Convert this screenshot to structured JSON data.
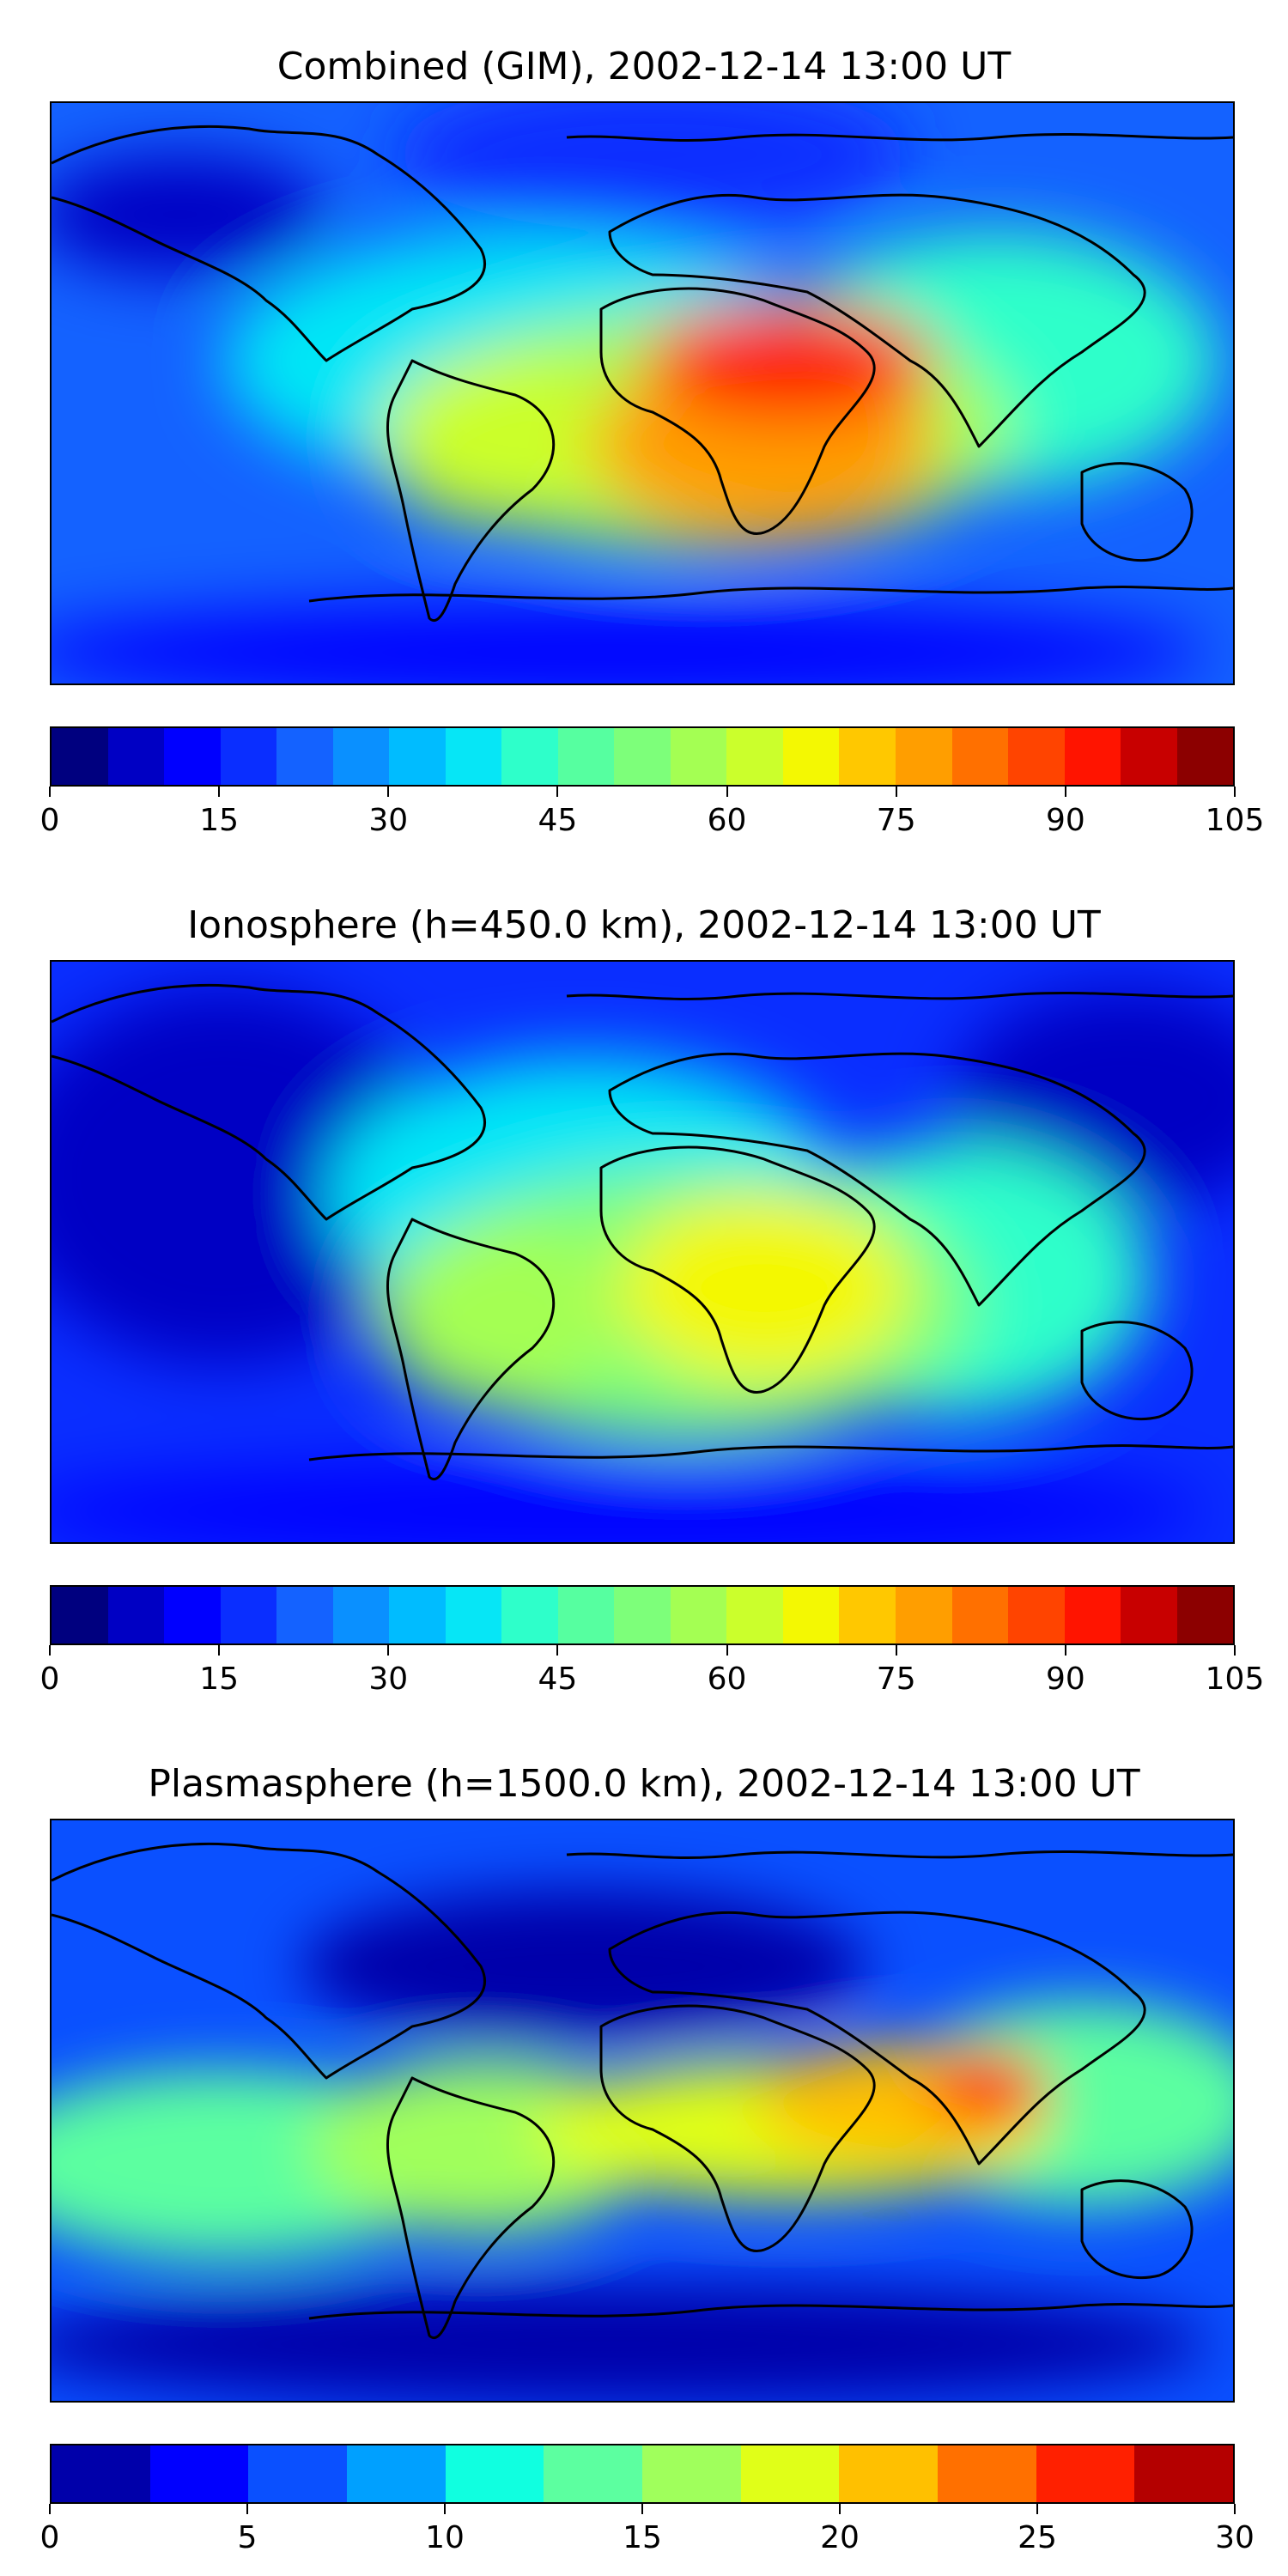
{
  "panels": [
    {
      "title": "Combined (GIM), 2002-12-14 13:00 UT",
      "colorbar": {
        "colors": [
          "#00007f",
          "#0000c4",
          "#0000ff",
          "#0a2eff",
          "#1462ff",
          "#0a90ff",
          "#00bcff",
          "#06e6f6",
          "#2effca",
          "#56ffa0",
          "#7dff7a",
          "#a4ff53",
          "#cbff2c",
          "#f4f802",
          "#ffc800",
          "#ff9e00",
          "#ff7000",
          "#ff4400",
          "#ff1400",
          "#c80000",
          "#8c0000"
        ],
        "ticks": [
          "0",
          "15",
          "30",
          "45",
          "60",
          "75",
          "90",
          "105"
        ],
        "range": [
          0,
          105
        ]
      },
      "map_field": {
        "background_level": 4,
        "features": [
          {
            "region": "north Atlantic band",
            "level": 8
          },
          {
            "region": "South America",
            "level": 12
          },
          {
            "region": "central Africa",
            "level": 16
          },
          {
            "region": "Horn of Africa / Arabia",
            "level": 18
          },
          {
            "region": "Indian Ocean",
            "level": 10
          },
          {
            "region": "southern ocean",
            "level": 3
          }
        ]
      }
    },
    {
      "title": "Ionosphere  (h=450.0 km), 2002-12-14 13:00 UT",
      "colorbar": {
        "colors": [
          "#00007f",
          "#0000c4",
          "#0000ff",
          "#0a2eff",
          "#1462ff",
          "#0a90ff",
          "#00bcff",
          "#06e6f6",
          "#2effca",
          "#56ffa0",
          "#7dff7a",
          "#a4ff53",
          "#cbff2c",
          "#f4f802",
          "#ffc800",
          "#ff9e00",
          "#ff7000",
          "#ff4400",
          "#ff1400",
          "#c80000",
          "#8c0000"
        ],
        "ticks": [
          "0",
          "15",
          "30",
          "45",
          "60",
          "75",
          "90",
          "105"
        ],
        "range": [
          0,
          105
        ]
      },
      "map_field": {
        "background_level": 3,
        "features": [
          {
            "region": "north Pacific",
            "level": 1
          },
          {
            "region": "north Atlantic band",
            "level": 7
          },
          {
            "region": "South America",
            "level": 11
          },
          {
            "region": "central Africa",
            "level": 13
          },
          {
            "region": "Indian Ocean",
            "level": 9
          },
          {
            "region": "southern ocean",
            "level": 3
          }
        ]
      }
    },
    {
      "title": "Plasmasphere (h=1500.0 km), 2002-12-14 13:00 UT",
      "colorbar": {
        "colors": [
          "#0000aa",
          "#0000ff",
          "#0a50ff",
          "#00a0ff",
          "#10ffe0",
          "#5cffa0",
          "#a0ff5c",
          "#e0ff18",
          "#ffc000",
          "#ff7000",
          "#ff2000",
          "#b40000"
        ],
        "ticks": [
          "0",
          "5",
          "10",
          "15",
          "20",
          "25",
          "30"
        ],
        "range": [
          0,
          30
        ]
      },
      "map_field": {
        "background_level": 2,
        "features": [
          {
            "region": "north Pacific",
            "level": 1
          },
          {
            "region": "tropical Pacific",
            "level": 5
          },
          {
            "region": "South America / Atlantic",
            "level": 6
          },
          {
            "region": "Africa / Indian Ocean",
            "level": 8
          },
          {
            "region": "Southeast Asia",
            "level": 10
          },
          {
            "region": "southern ocean",
            "level": 0
          }
        ]
      }
    }
  ]
}
